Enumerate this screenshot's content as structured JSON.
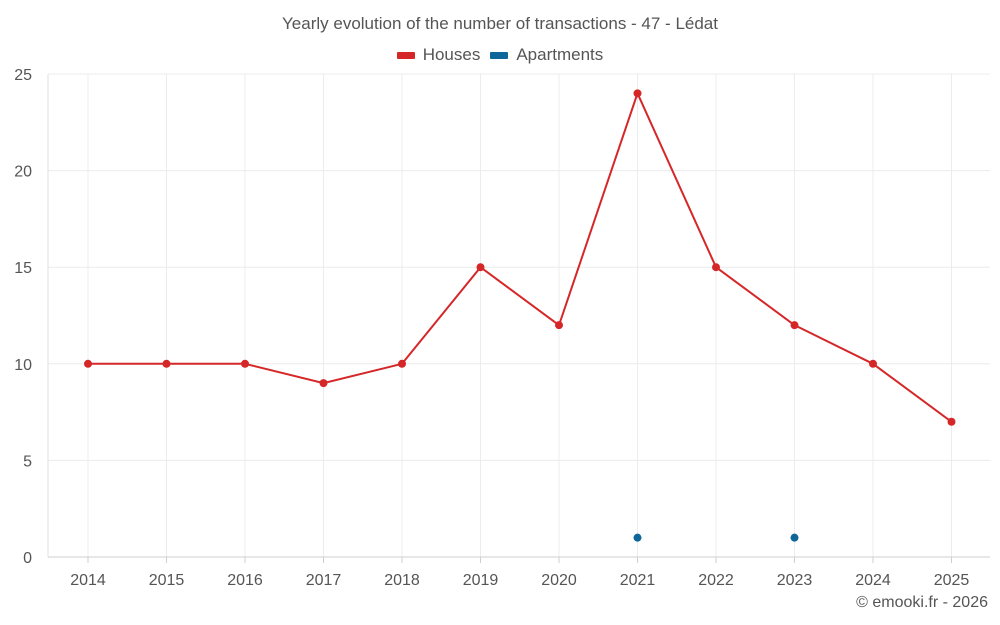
{
  "chart_data": {
    "type": "line",
    "title": "Yearly evolution of the number of transactions - 47 - Lédat",
    "xlabel": "",
    "ylabel": "",
    "categories": [
      "2014",
      "2015",
      "2016",
      "2017",
      "2018",
      "2019",
      "2020",
      "2021",
      "2022",
      "2023",
      "2024",
      "2025"
    ],
    "ylim": [
      0,
      25
    ],
    "yticks": [
      0,
      5,
      10,
      15,
      20,
      25
    ],
    "grid": true,
    "legend_position": "top-center",
    "series": [
      {
        "name": "Houses",
        "color": "#d62728",
        "style": "line-with-markers",
        "values": [
          10,
          10,
          10,
          9,
          10,
          15,
          12,
          24,
          15,
          12,
          10,
          7
        ]
      },
      {
        "name": "Apartments",
        "color": "#0f6699",
        "style": "markers",
        "values": [
          null,
          null,
          null,
          null,
          null,
          null,
          null,
          1,
          null,
          1,
          null,
          null
        ]
      }
    ]
  },
  "footer": {
    "credit": "© emooki.fr - 2026"
  }
}
